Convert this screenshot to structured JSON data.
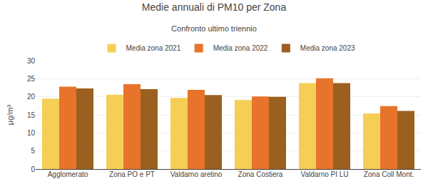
{
  "chart_data": {
    "type": "bar",
    "title": "Medie annuali di PM10 per Zona",
    "subtitle": "Confronto ultimo triennio",
    "categories": [
      "Agglomerato",
      "Zona PO e PT",
      "Valdarno aretino",
      "Zona Costiera",
      "Valdarno PI LU",
      "Zona Coll Mont."
    ],
    "series": [
      {
        "name": "Media zona 2021",
        "color": "#F5CF55",
        "values": [
          19.5,
          20.6,
          19.7,
          19.1,
          23.8,
          15.4
        ]
      },
      {
        "name": "Media zona 2022",
        "color": "#E8732A",
        "values": [
          22.8,
          23.5,
          21.9,
          20.1,
          25.1,
          17.4
        ]
      },
      {
        "name": "Media zona 2023",
        "color": "#9B6020",
        "values": [
          22.3,
          22.1,
          20.5,
          20.0,
          23.8,
          16.1
        ]
      }
    ],
    "ylabel": "μg/m³",
    "ylim": [
      0,
      30
    ],
    "yticks": [
      0,
      5,
      10,
      15,
      20,
      25,
      30
    ],
    "grid": true,
    "legend": "top"
  }
}
